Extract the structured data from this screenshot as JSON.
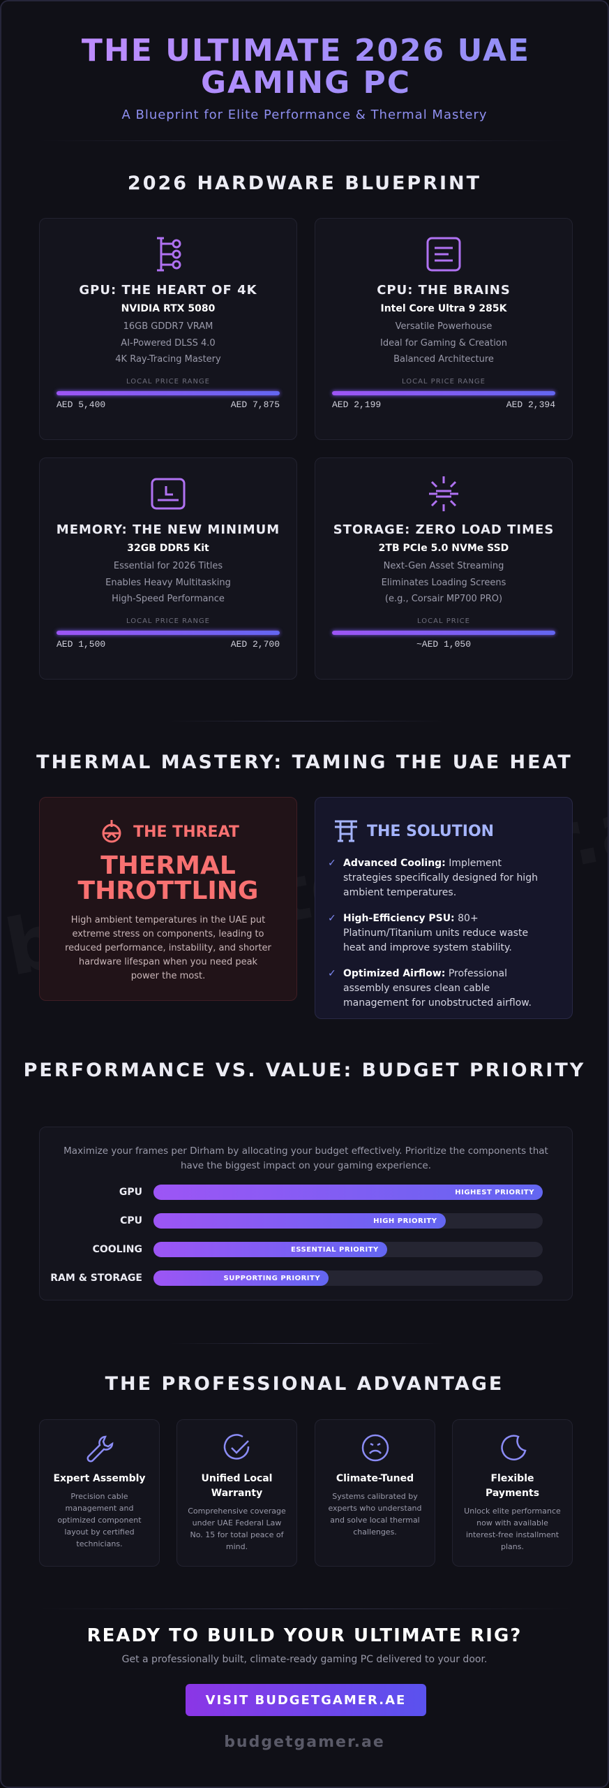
{
  "header": {
    "title": "THE ULTIMATE 2026 UAE GAMING PC",
    "subtitle": "A Blueprint for Elite Performance & Thermal Mastery"
  },
  "hardware": {
    "heading": "2026 HARDWARE BLUEPRINT",
    "cards": [
      {
        "title": "GPU: THE HEART OF 4K",
        "model": "NVIDIA RTX 5080",
        "features": [
          "16GB GDDR7 VRAM",
          "AI-Powered DLSS 4.0",
          "4K Ray-Tracing Mastery"
        ],
        "price_label": "LOCAL PRICE RANGE",
        "price_low": "AED 5,400",
        "price_high": "AED 7,875"
      },
      {
        "title": "CPU: THE BRAINS",
        "model": "Intel Core Ultra 9 285K",
        "features": [
          "Versatile Powerhouse",
          "Ideal for Gaming & Creation",
          "Balanced Architecture"
        ],
        "price_label": "LOCAL PRICE RANGE",
        "price_low": "AED 2,199",
        "price_high": "AED 2,394"
      },
      {
        "title": "MEMORY: THE NEW MINIMUM",
        "model": "32GB DDR5 Kit",
        "features": [
          "Essential for 2026 Titles",
          "Enables Heavy Multitasking",
          "High-Speed Performance"
        ],
        "price_label": "LOCAL PRICE RANGE",
        "price_low": "AED 1,500",
        "price_high": "AED 2,700"
      },
      {
        "title": "STORAGE: ZERO LOAD TIMES",
        "model": "2TB PCIe 5.0 NVMe SSD",
        "features": [
          "Next-Gen Asset Streaming",
          "Eliminates Loading Screens",
          "(e.g., Corsair MP700 PRO)"
        ],
        "price_label": "LOCAL PRICE",
        "price": "~AED 1,050"
      }
    ]
  },
  "thermal": {
    "heading": "THERMAL MASTERY: TAMING THE UAE HEAT",
    "threat": {
      "label": "THE THREAT",
      "headline": "THERMAL THROTTLING",
      "text": "High ambient temperatures in the UAE put extreme stress on components, leading to reduced performance, instability, and shorter hardware lifespan when you need peak power the most."
    },
    "solution": {
      "label": "THE SOLUTION",
      "items": [
        {
          "term": "Advanced Cooling:",
          "text": "Implement strategies specifically designed for high ambient temperatures."
        },
        {
          "term": "High-Efficiency PSU:",
          "text": "80+ Platinum/Titanium units reduce waste heat and improve system stability."
        },
        {
          "term": "Optimized Airflow:",
          "text": "Professional assembly ensures clean cable management for unobstructed airflow."
        }
      ]
    }
  },
  "budget": {
    "heading": "PERFORMANCE VS. VALUE: BUDGET PRIORITY",
    "intro": "Maximize your frames per Dirham by allocating your budget effectively. Prioritize the components that have the biggest impact on your gaming experience.",
    "rows": [
      {
        "label": "GPU",
        "priority": "HIGHEST PRIORITY"
      },
      {
        "label": "CPU",
        "priority": "HIGH PRIORITY"
      },
      {
        "label": "COOLING",
        "priority": "ESSENTIAL PRIORITY"
      },
      {
        "label": "RAM & STORAGE",
        "priority": "SUPPORTING PRIORITY"
      }
    ]
  },
  "advantage": {
    "heading": "THE PROFESSIONAL ADVANTAGE",
    "items": [
      {
        "title": "Expert Assembly",
        "text": "Precision cable management and optimized component layout by certified technicians."
      },
      {
        "title": "Unified Local Warranty",
        "text": "Comprehensive coverage under UAE Federal Law No. 15 for total peace of mind."
      },
      {
        "title": "Climate-Tuned",
        "text": "Systems calibrated by experts who understand and solve local thermal challenges."
      },
      {
        "title": "Flexible Payments",
        "text": "Unlock elite performance now with available interest-free installment plans."
      }
    ]
  },
  "cta": {
    "heading": "READY TO BUILD YOUR ULTIMATE RIG?",
    "text": "Get a professionally built, climate-ready gaming PC delivered to your door.",
    "button": "VISIT BUDGETGAMER.AE",
    "domain": "budgetgamer.ae"
  },
  "watermark": "budgetgamer.ae"
}
